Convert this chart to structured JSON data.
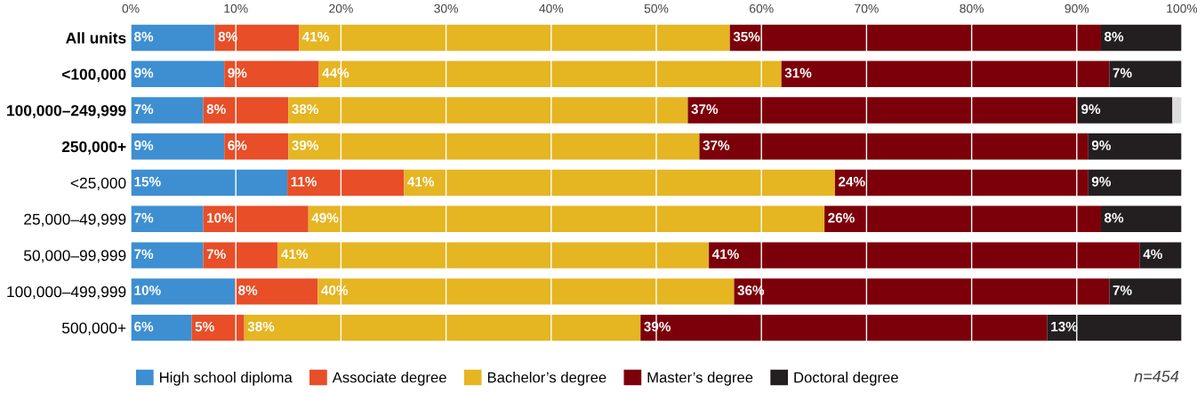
{
  "chart_data": {
    "type": "bar",
    "orientation": "horizontal",
    "stacked": true,
    "categories": [
      "All units",
      "<100,000",
      "100,000–249,999",
      "250,000+",
      "<25,000",
      "25,000–49,999",
      "50,000–99,999",
      "100,000–499,999",
      "500,000+"
    ],
    "series": [
      {
        "name": "High school diploma",
        "color": "#3d8fd1",
        "values": [
          8.0,
          8.9,
          6.9,
          8.9,
          14.9,
          6.9,
          6.9,
          9.9,
          5.8
        ],
        "value_labels": [
          "8%",
          "9%",
          "7%",
          "9%",
          "15%",
          "7%",
          "7%",
          "10%",
          "6%"
        ]
      },
      {
        "name": "Associate degree",
        "color": "#e84e27",
        "values": [
          8.0,
          9.0,
          8.1,
          6.1,
          11.1,
          10.0,
          7.1,
          7.9,
          5.0
        ],
        "value_labels": [
          "8%",
          "9%",
          "8%",
          "6%",
          "11%",
          "10%",
          "7%",
          "8%",
          "5%"
        ]
      },
      {
        "name": "Bachelor’s degree",
        "color": "#e5b522",
        "values": [
          41.0,
          44.0,
          38.0,
          39.1,
          41.0,
          49.1,
          41.0,
          39.6,
          37.7
        ],
        "value_labels": [
          "41%",
          "44%",
          "38%",
          "39%",
          "41%",
          "49%",
          "41%",
          "40%",
          "38%"
        ]
      },
      {
        "name": "Master’s degree",
        "color": "#7c0009",
        "values": [
          35.3,
          31.2,
          37.1,
          37.0,
          24.1,
          26.3,
          41.0,
          35.7,
          38.7
        ],
        "value_labels": [
          "35%",
          "31%",
          "37%",
          "37%",
          "24%",
          "26%",
          "41%",
          "36%",
          "39%"
        ]
      },
      {
        "name": "Doctoral degree",
        "color": "#231f20",
        "values": [
          7.7,
          6.9,
          9.0,
          8.9,
          8.9,
          7.7,
          4.0,
          6.9,
          12.8
        ],
        "value_labels": [
          "8%",
          "7%",
          "9%",
          "9%",
          "9%",
          "8%",
          "4%",
          "7%",
          "13%"
        ]
      },
      {
        "color": "#dcdcdc",
        "values": [
          null,
          null,
          0.9,
          null,
          null,
          null,
          null,
          null,
          null
        ]
      }
    ],
    "xlim": [
      0,
      100
    ],
    "xticks": [
      {
        "value": 0,
        "label": "0%"
      },
      {
        "value": 10,
        "label": "10%"
      },
      {
        "value": 20,
        "label": "20%"
      },
      {
        "value": 30,
        "label": "30%"
      },
      {
        "value": 40,
        "label": "40%"
      },
      {
        "value": 50,
        "label": "50%"
      },
      {
        "value": 60,
        "label": "60%"
      },
      {
        "value": 70,
        "label": "70%"
      },
      {
        "value": 80,
        "label": "80%"
      },
      {
        "value": 90,
        "label": "90%"
      },
      {
        "value": 100,
        "label": "100%"
      }
    ],
    "legend": "bottom left",
    "grid": "x",
    "annotations": [
      "n=454"
    ]
  }
}
